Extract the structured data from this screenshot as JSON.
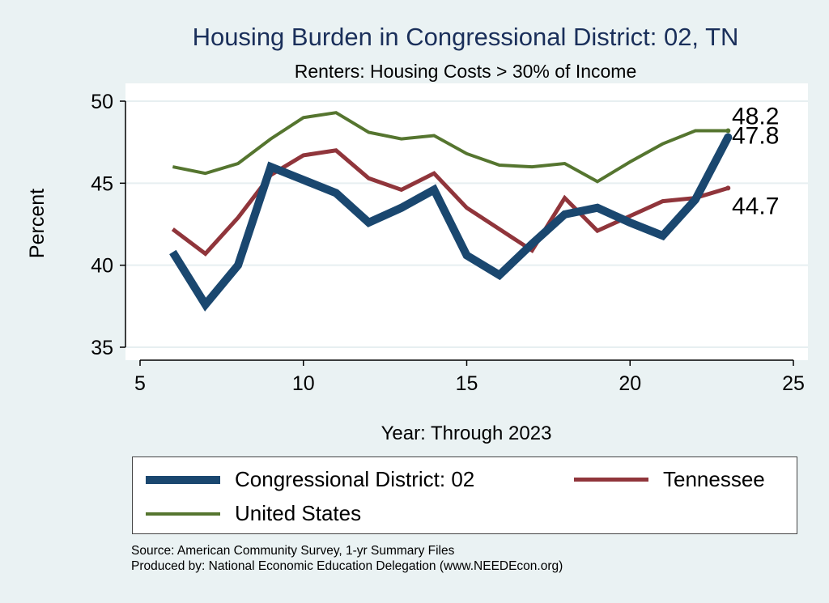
{
  "chart_data": {
    "type": "line",
    "title": "Housing Burden in Congressional District:  02, TN",
    "subtitle": "Renters: Housing Costs > 30% of Income",
    "xlabel": "Year: Through 2023",
    "ylabel": "Percent",
    "xlim": [
      5,
      25
    ],
    "ylim": [
      35,
      50
    ],
    "xticks": [
      5,
      10,
      15,
      20,
      25
    ],
    "yticks": [
      35,
      40,
      45,
      50
    ],
    "grid": true,
    "series": [
      {
        "name": "Congressional District:  02",
        "color": "#1a476f",
        "x": [
          6,
          7,
          8,
          9,
          10,
          11,
          12,
          13,
          14,
          15,
          16,
          17,
          18,
          19,
          20,
          21,
          22,
          23
        ],
        "values": [
          40.8,
          37.6,
          40.0,
          46.0,
          45.2,
          44.4,
          42.6,
          43.5,
          44.6,
          40.6,
          39.4,
          41.3,
          43.1,
          43.5,
          42.6,
          41.8,
          44.0,
          47.8
        ],
        "end_label": "47.8"
      },
      {
        "name": "Tennessee",
        "color": "#90353b",
        "x": [
          6,
          7,
          8,
          9,
          10,
          11,
          12,
          13,
          14,
          15,
          16,
          17,
          18,
          19,
          20,
          21,
          22,
          23
        ],
        "values": [
          42.2,
          40.7,
          42.9,
          45.5,
          46.7,
          47.0,
          45.3,
          44.6,
          45.6,
          43.5,
          42.2,
          40.9,
          44.1,
          42.1,
          43.0,
          43.9,
          44.1,
          44.7
        ],
        "end_label": "44.7"
      },
      {
        "name": "United States",
        "color": "#55752f",
        "x": [
          6,
          7,
          8,
          9,
          10,
          11,
          12,
          13,
          14,
          15,
          16,
          17,
          18,
          19,
          20,
          21,
          22,
          23
        ],
        "values": [
          46.0,
          45.6,
          46.2,
          47.7,
          49.0,
          49.3,
          48.1,
          47.7,
          47.9,
          46.8,
          46.1,
          46.0,
          46.2,
          45.1,
          46.3,
          47.4,
          48.2,
          48.2
        ],
        "end_label": "48.2"
      }
    ],
    "legend_position": "bottom"
  },
  "source_text": "Source: American Community Survey, 1-yr Summary Files",
  "produced_text": "Produced by: National Economic Education Delegation (www.NEEDEcon.org)"
}
